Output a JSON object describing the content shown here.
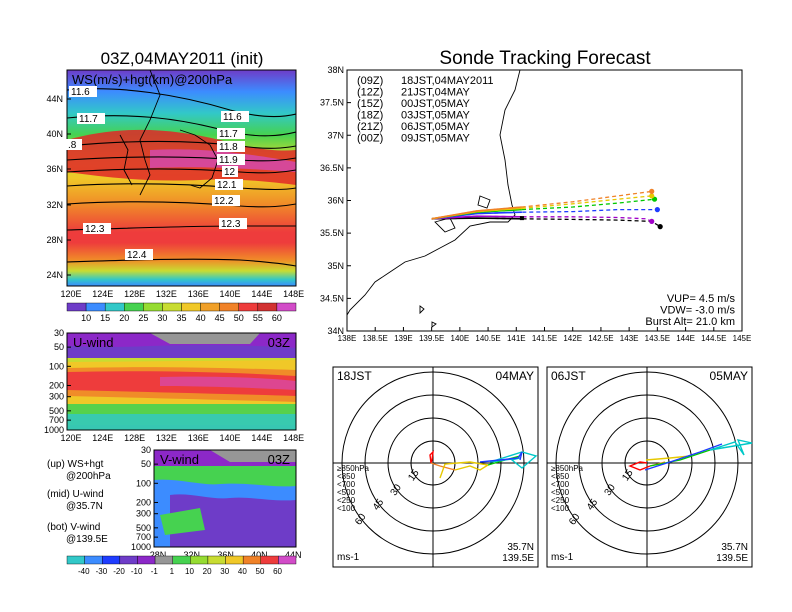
{
  "header": {
    "left_title": "03Z,04MAY2011 (init)",
    "right_title": "Sonde Tracking Forecast"
  },
  "map_panel": {
    "label": "WS(m/s)+hgt(km)@200hPa",
    "lat_ticks": [
      "44N",
      "40N",
      "36N",
      "32N",
      "28N",
      "24N"
    ],
    "lon_ticks": [
      "120E",
      "124E",
      "128E",
      "132E",
      "136E",
      "140E",
      "144E",
      "148E"
    ],
    "contour_labels": [
      "11.6",
      "11.7",
      ".8",
      "11.6",
      "11.7",
      "11.8",
      "11.9",
      "12",
      "12.1",
      "12.2",
      "12.3",
      "12.3",
      "12.4"
    ]
  },
  "ws_colorbar": {
    "labels": [
      "10",
      "15",
      "20",
      "25",
      "30",
      "35",
      "40",
      "45",
      "50",
      "55",
      "60"
    ]
  },
  "uwind_panel": {
    "label": "U-wind",
    "time": "03Z",
    "pressure_ticks": [
      "30",
      "50",
      "100",
      "200",
      "300",
      "500",
      "700",
      "1000"
    ],
    "lon_ticks": [
      "120E",
      "124E",
      "128E",
      "132E",
      "136E",
      "140E",
      "144E",
      "148E"
    ]
  },
  "vwind_panel": {
    "label": "V-wind",
    "time": "03Z",
    "pressure_ticks": [
      "30",
      "50",
      "100",
      "200",
      "300",
      "500",
      "700",
      "1000"
    ],
    "lat_ticks": [
      "28N",
      "32N",
      "36N",
      "40N",
      "44N"
    ]
  },
  "legend_notes": [
    {
      "line1": "(up) WS+hgt",
      "line2": "@200hPa"
    },
    {
      "line1": "(mid) U-wind",
      "line2": "@35.7N"
    },
    {
      "line1": "(bot) V-wind",
      "line2": "@139.5E"
    }
  ],
  "wind_colorbar": {
    "labels": [
      "-40",
      "-30",
      "-20",
      "-10",
      "-1",
      "1",
      "10",
      "20",
      "30",
      "40",
      "50",
      "60"
    ]
  },
  "chart_data": {
    "type": "line",
    "title": "Sonde Tracking Forecast",
    "xlim": [
      138,
      145
    ],
    "ylim": [
      34,
      38
    ],
    "x_ticks": [
      "138E",
      "138.5E",
      "139E",
      "139.5E",
      "140E",
      "140.5E",
      "141E",
      "141.5E",
      "142E",
      "142.5E",
      "143E",
      "143.5E",
      "144E",
      "144.5E",
      "145E"
    ],
    "y_ticks": [
      "34N",
      "34.5N",
      "35N",
      "35.5N",
      "36N",
      "36.5N",
      "37N",
      "37.5N",
      "38N"
    ],
    "launch": {
      "lon": 139.5,
      "lat": 35.7
    },
    "series": [
      {
        "name": "(09Z)",
        "label": "18JST,04MAY2011",
        "color": "#000000",
        "points": [
          [
            139.5,
            35.72
          ],
          [
            140.3,
            35.73
          ],
          [
            141.1,
            35.72
          ],
          [
            142.0,
            35.71
          ],
          [
            142.8,
            35.7
          ],
          [
            143.4,
            35.68
          ],
          [
            143.55,
            35.6
          ]
        ]
      },
      {
        "name": "(12Z)",
        "label": "21JST,04MAY",
        "color": "#a000c8",
        "points": [
          [
            139.5,
            35.72
          ],
          [
            140.3,
            35.76
          ],
          [
            141.1,
            35.75
          ],
          [
            142.0,
            35.75
          ],
          [
            142.8,
            35.74
          ],
          [
            143.3,
            35.72
          ],
          [
            143.4,
            35.68
          ]
        ]
      },
      {
        "name": "(15Z)",
        "label": "00JST,05MAY",
        "color": "#1e3cff",
        "points": [
          [
            139.5,
            35.72
          ],
          [
            140.3,
            35.8
          ],
          [
            141.1,
            35.82
          ],
          [
            142.0,
            35.83
          ],
          [
            142.8,
            35.86
          ],
          [
            143.5,
            35.86
          ]
        ]
      },
      {
        "name": "(18Z)",
        "label": "03JST,05MAY",
        "color": "#00c800",
        "points": [
          [
            139.5,
            35.72
          ],
          [
            140.3,
            35.82
          ],
          [
            141.1,
            35.86
          ],
          [
            142.0,
            35.9
          ],
          [
            142.8,
            35.96
          ],
          [
            143.45,
            36.02
          ]
        ]
      },
      {
        "name": "(21Z)",
        "label": "06JST,05MAY",
        "color": "#e6c800",
        "points": [
          [
            139.5,
            35.72
          ],
          [
            140.3,
            35.83
          ],
          [
            141.1,
            35.88
          ],
          [
            142.0,
            35.95
          ],
          [
            142.8,
            36.02
          ],
          [
            143.4,
            36.07
          ]
        ]
      },
      {
        "name": "(00Z)",
        "label": "09JST,05MAY",
        "color": "#f08228",
        "points": [
          [
            139.5,
            35.72
          ],
          [
            140.3,
            35.84
          ],
          [
            141.1,
            35.9
          ],
          [
            142.0,
            35.98
          ],
          [
            142.8,
            36.07
          ],
          [
            143.4,
            36.14
          ]
        ]
      }
    ],
    "annotations": [
      "VUP= 4.5 m/s",
      "VDW= -3.0 m/s",
      "Burst Alt= 21.0 km"
    ]
  },
  "hodographs": [
    {
      "time_label": "18JST",
      "date_label": "04MAY",
      "ring_labels": [
        "15",
        "30",
        "45",
        "60"
      ],
      "unit": "ms-1",
      "lat": "35.7N",
      "lon": "139.5E",
      "legend": [
        {
          "text": "≥850hPa",
          "color": "#ff0000"
        },
        {
          "text": "<850",
          "color": "#f08228"
        },
        {
          "text": "<700",
          "color": "#e6c800"
        },
        {
          "text": "<500",
          "color": "#00c800"
        },
        {
          "text": "<250",
          "color": "#00c8c8"
        },
        {
          "text": "<100",
          "color": "#1e3cff"
        }
      ]
    },
    {
      "time_label": "06JST",
      "date_label": "05MAY",
      "ring_labels": [
        "15",
        "30",
        "45",
        "60"
      ],
      "unit": "ms-1",
      "lat": "35.7N",
      "lon": "139.5E",
      "legend": [
        {
          "text": "≥850hPa",
          "color": "#ff0000"
        },
        {
          "text": "<850",
          "color": "#f08228"
        },
        {
          "text": "<700",
          "color": "#e6c800"
        },
        {
          "text": "<500",
          "color": "#00c800"
        },
        {
          "text": "<250",
          "color": "#00c8c8"
        },
        {
          "text": "<100",
          "color": "#1e3cff"
        }
      ]
    }
  ]
}
